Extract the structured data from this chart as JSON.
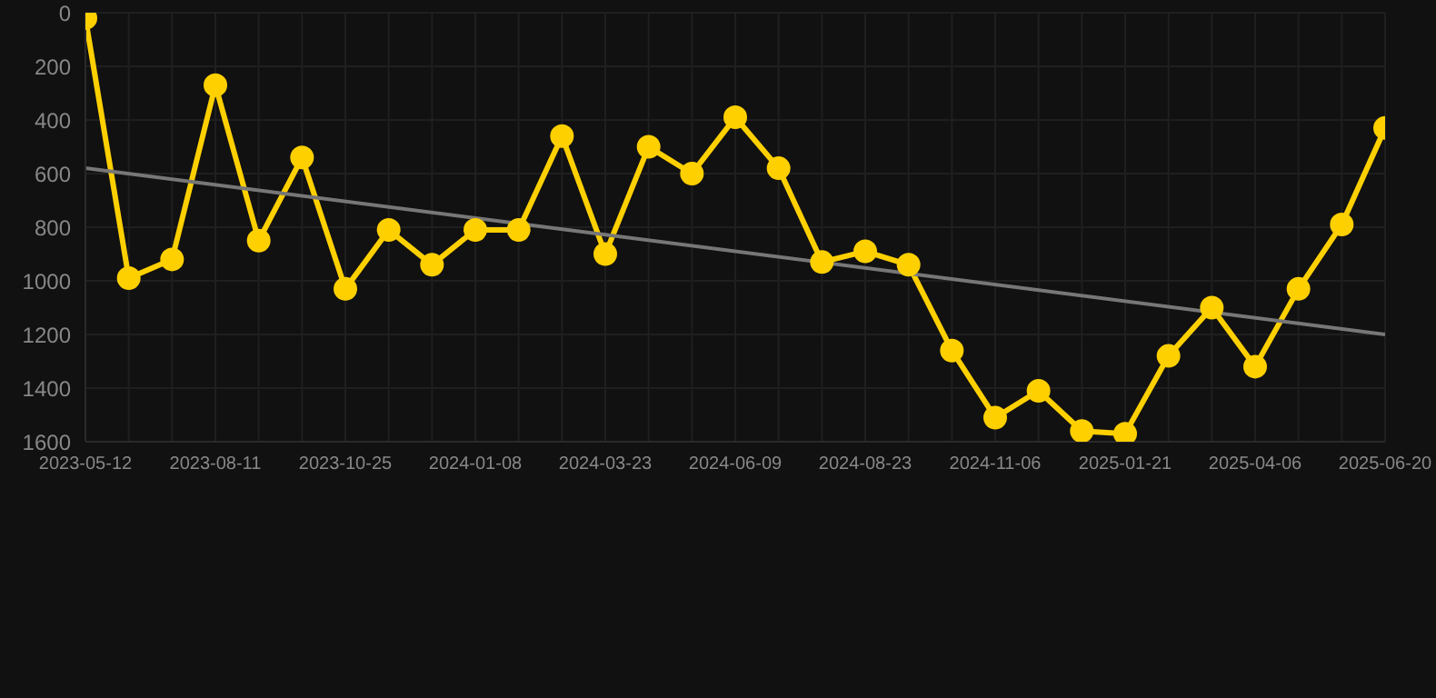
{
  "chart_data": {
    "type": "line",
    "categories": [
      "2023-05-12",
      null,
      null,
      "2023-08-11",
      null,
      null,
      "2023-10-25",
      null,
      null,
      "2024-01-08",
      null,
      null,
      "2024-03-23",
      null,
      null,
      "2024-06-09",
      null,
      null,
      "2024-08-23",
      null,
      null,
      "2024-11-06",
      null,
      null,
      "2025-01-21",
      null,
      null,
      "2025-04-06",
      null,
      null,
      "2025-06-20"
    ],
    "series": [
      {
        "color": "#ffd000",
        "marker": "circle",
        "values": [
          20,
          990,
          920,
          270,
          850,
          540,
          1030,
          810,
          940,
          810,
          810,
          460,
          900,
          500,
          600,
          390,
          580,
          930,
          890,
          940,
          1260,
          1510,
          1410,
          1560,
          1570,
          1280,
          1100,
          1320,
          1030,
          790,
          430
        ]
      },
      {
        "color": "#777777",
        "marker": "none",
        "values": [
          580,
          null,
          null,
          null,
          null,
          null,
          null,
          null,
          null,
          null,
          null,
          null,
          null,
          null,
          null,
          null,
          null,
          null,
          null,
          null,
          null,
          null,
          null,
          null,
          null,
          null,
          null,
          null,
          null,
          null,
          1200
        ]
      }
    ],
    "ylim": [
      1600,
      0
    ],
    "yticks": [
      0,
      200,
      400,
      600,
      800,
      1000,
      1200,
      1400,
      1600
    ],
    "grid": true,
    "line_style": "solid"
  }
}
